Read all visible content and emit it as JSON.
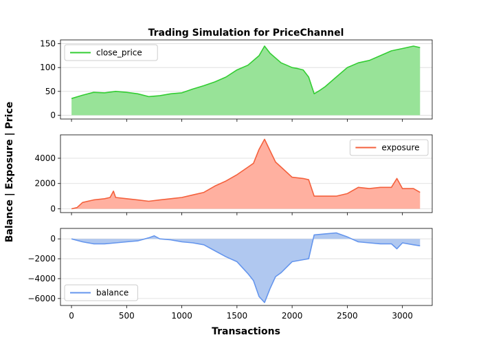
{
  "chart_data": {
    "title": "Trading Simulation for PriceChannel",
    "xlabel": "Transactions",
    "ylabel": "Balance | Exposure | Price",
    "x_ticks": [
      0,
      500,
      1000,
      1500,
      2000,
      2500,
      3000
    ],
    "x_range": [
      -100,
      3270
    ],
    "grid": "horizontal",
    "panels": [
      {
        "type": "area",
        "series_name": "close_price",
        "line_color": "#32cd32",
        "fill_color": "#98e398",
        "legend_position": "upper-left",
        "ylim": [
          -8,
          158
        ],
        "y_ticks": [
          0,
          50,
          100,
          150
        ],
        "points": [
          [
            0,
            35
          ],
          [
            100,
            42
          ],
          [
            200,
            48
          ],
          [
            300,
            47
          ],
          [
            400,
            50
          ],
          [
            500,
            48
          ],
          [
            600,
            45
          ],
          [
            700,
            39
          ],
          [
            800,
            41
          ],
          [
            900,
            45
          ],
          [
            1000,
            47
          ],
          [
            1100,
            55
          ],
          [
            1200,
            62
          ],
          [
            1300,
            70
          ],
          [
            1400,
            80
          ],
          [
            1500,
            95
          ],
          [
            1600,
            105
          ],
          [
            1700,
            125
          ],
          [
            1750,
            145
          ],
          [
            1800,
            130
          ],
          [
            1900,
            110
          ],
          [
            1950,
            105
          ],
          [
            2000,
            100
          ],
          [
            2050,
            98
          ],
          [
            2100,
            95
          ],
          [
            2150,
            80
          ],
          [
            2200,
            45
          ],
          [
            2250,
            52
          ],
          [
            2300,
            60
          ],
          [
            2400,
            80
          ],
          [
            2500,
            100
          ],
          [
            2600,
            110
          ],
          [
            2700,
            115
          ],
          [
            2800,
            125
          ],
          [
            2900,
            135
          ],
          [
            3000,
            140
          ],
          [
            3100,
            145
          ],
          [
            3160,
            142
          ]
        ]
      },
      {
        "type": "area",
        "series_name": "exposure",
        "line_color": "#f4603c",
        "fill_color": "#ffb0a0",
        "legend_position": "upper-right",
        "ylim": [
          -300,
          5850
        ],
        "y_ticks": [
          0,
          2000,
          4000
        ],
        "points": [
          [
            0,
            0
          ],
          [
            50,
            100
          ],
          [
            100,
            500
          ],
          [
            200,
            700
          ],
          [
            300,
            800
          ],
          [
            350,
            900
          ],
          [
            380,
            1400
          ],
          [
            400,
            900
          ],
          [
            500,
            800
          ],
          [
            600,
            700
          ],
          [
            700,
            600
          ],
          [
            800,
            700
          ],
          [
            900,
            800
          ],
          [
            1000,
            900
          ],
          [
            1100,
            1100
          ],
          [
            1200,
            1300
          ],
          [
            1300,
            1800
          ],
          [
            1400,
            2200
          ],
          [
            1500,
            2700
          ],
          [
            1600,
            3300
          ],
          [
            1650,
            3600
          ],
          [
            1700,
            4700
          ],
          [
            1750,
            5500
          ],
          [
            1800,
            4600
          ],
          [
            1850,
            3700
          ],
          [
            1900,
            3300
          ],
          [
            2000,
            2500
          ],
          [
            2100,
            2400
          ],
          [
            2150,
            2300
          ],
          [
            2200,
            1000
          ],
          [
            2300,
            1000
          ],
          [
            2400,
            1000
          ],
          [
            2500,
            1200
          ],
          [
            2600,
            1700
          ],
          [
            2700,
            1600
          ],
          [
            2800,
            1700
          ],
          [
            2900,
            1700
          ],
          [
            2950,
            2400
          ],
          [
            3000,
            1600
          ],
          [
            3100,
            1600
          ],
          [
            3160,
            1300
          ]
        ]
      },
      {
        "type": "area",
        "series_name": "balance",
        "line_color": "#6495ed",
        "fill_color": "#b0c8f0",
        "legend_position": "lower-left",
        "ylim": [
          -6700,
          1050
        ],
        "y_ticks": [
          0,
          -2000,
          -4000,
          -6000
        ],
        "points": [
          [
            0,
            0
          ],
          [
            100,
            -300
          ],
          [
            200,
            -500
          ],
          [
            300,
            -500
          ],
          [
            400,
            -400
          ],
          [
            500,
            -300
          ],
          [
            600,
            -200
          ],
          [
            700,
            100
          ],
          [
            750,
            300
          ],
          [
            800,
            0
          ],
          [
            900,
            -100
          ],
          [
            1000,
            -300
          ],
          [
            1100,
            -400
          ],
          [
            1200,
            -600
          ],
          [
            1300,
            -1200
          ],
          [
            1400,
            -1800
          ],
          [
            1500,
            -2300
          ],
          [
            1600,
            -3500
          ],
          [
            1650,
            -4200
          ],
          [
            1700,
            -5800
          ],
          [
            1750,
            -6400
          ],
          [
            1800,
            -5000
          ],
          [
            1850,
            -3800
          ],
          [
            1900,
            -3400
          ],
          [
            2000,
            -2300
          ],
          [
            2100,
            -2100
          ],
          [
            2150,
            -2000
          ],
          [
            2200,
            400
          ],
          [
            2300,
            500
          ],
          [
            2400,
            600
          ],
          [
            2500,
            200
          ],
          [
            2600,
            -300
          ],
          [
            2700,
            -400
          ],
          [
            2800,
            -500
          ],
          [
            2900,
            -500
          ],
          [
            2950,
            -1000
          ],
          [
            3000,
            -400
          ],
          [
            3100,
            -600
          ],
          [
            3160,
            -700
          ]
        ]
      }
    ]
  }
}
